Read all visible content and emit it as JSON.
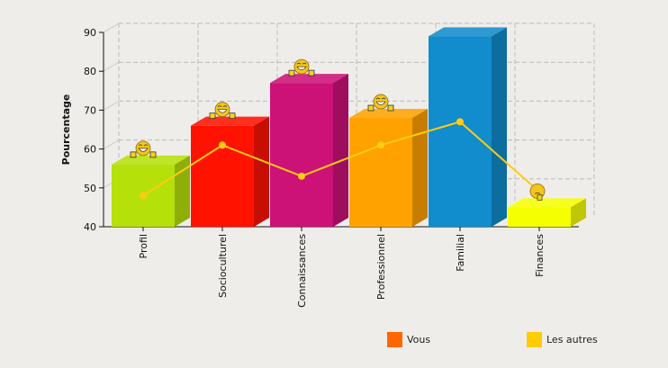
{
  "chart_data": {
    "type": "bar",
    "title": "",
    "xlabel": "",
    "ylabel": "Pourcentage",
    "ylim": [
      40,
      90
    ],
    "yticks": [
      40,
      50,
      60,
      70,
      80,
      90
    ],
    "grid": true,
    "legend_position": "bottom-right",
    "categories": [
      "Profil",
      "Socioculturel",
      "Connaissances",
      "Professionnel",
      "Familial",
      "Finances"
    ],
    "series": [
      {
        "name": "Vous",
        "type": "bar3d",
        "legend_color": "#ff6600",
        "values": [
          56,
          66,
          77,
          68,
          89,
          45
        ],
        "colors": [
          "#b5e00a",
          "#ff1200",
          "#cc1177",
          "#ffa200",
          "#118ccc",
          "#f5ff00"
        ]
      },
      {
        "name": "Les autres",
        "type": "line",
        "legend_color": "#ffcc00",
        "color": "#ffcc11",
        "values": [
          48,
          61,
          53,
          61,
          67,
          49
        ]
      }
    ],
    "markers": [
      "happy",
      "happy",
      "happy",
      "happy",
      "none",
      "thinking"
    ]
  }
}
